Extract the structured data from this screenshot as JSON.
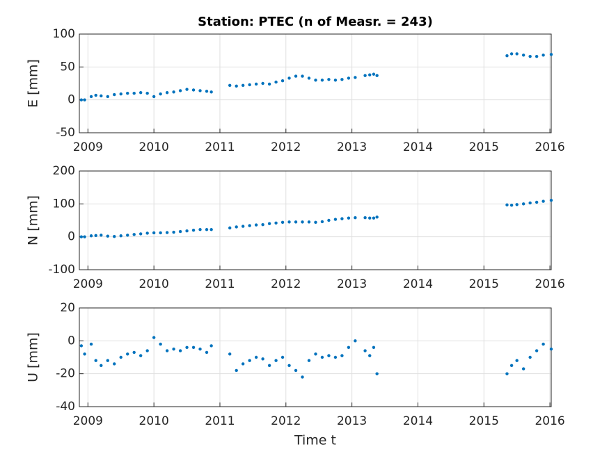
{
  "chart_data": [
    {
      "type": "scatter",
      "title": "Station: PTEC (n of Measr. = 243)",
      "ylabel": "E [mm]",
      "color": "#0072bd",
      "grid": true,
      "xlim": [
        2008.87,
        2016.02
      ],
      "xticks": [
        2009,
        2010,
        2011,
        2012,
        2013,
        2014,
        2015,
        2016
      ],
      "ylim": [
        -50,
        100
      ],
      "yticks": [
        -50,
        0,
        50,
        100
      ],
      "x": [
        2008.9,
        2008.95,
        2009.05,
        2009.12,
        2009.2,
        2009.3,
        2009.4,
        2009.5,
        2009.6,
        2009.7,
        2009.8,
        2009.9,
        2010.0,
        2010.1,
        2010.2,
        2010.3,
        2010.4,
        2010.5,
        2010.6,
        2010.7,
        2010.8,
        2010.87,
        2011.15,
        2011.25,
        2011.35,
        2011.45,
        2011.55,
        2011.65,
        2011.75,
        2011.85,
        2011.95,
        2012.05,
        2012.15,
        2012.25,
        2012.35,
        2012.45,
        2012.55,
        2012.65,
        2012.75,
        2012.85,
        2012.95,
        2013.05,
        2013.2,
        2013.27,
        2013.33,
        2013.38,
        2015.35,
        2015.42,
        2015.5,
        2015.6,
        2015.7,
        2015.8,
        2015.9,
        2016.02
      ],
      "values": [
        0,
        0,
        5,
        7,
        6,
        5,
        8,
        9,
        10,
        10,
        11,
        10,
        5,
        9,
        11,
        12,
        14,
        16,
        15,
        14,
        13,
        12,
        22,
        21,
        22,
        23,
        24,
        25,
        24,
        27,
        29,
        33,
        36,
        36,
        33,
        30,
        30,
        31,
        30,
        31,
        33,
        34,
        37,
        38,
        39,
        37,
        67,
        70,
        70,
        68,
        66,
        66,
        68,
        69
      ]
    },
    {
      "type": "scatter",
      "ylabel": "N [mm]",
      "color": "#0072bd",
      "grid": true,
      "xlim": [
        2008.87,
        2016.02
      ],
      "xticks": [
        2009,
        2010,
        2011,
        2012,
        2013,
        2014,
        2015,
        2016
      ],
      "ylim": [
        -100,
        200
      ],
      "yticks": [
        -100,
        0,
        100,
        200
      ],
      "x": [
        2008.9,
        2008.95,
        2009.05,
        2009.12,
        2009.2,
        2009.3,
        2009.4,
        2009.5,
        2009.6,
        2009.7,
        2009.8,
        2009.9,
        2010.0,
        2010.1,
        2010.2,
        2010.3,
        2010.4,
        2010.5,
        2010.6,
        2010.7,
        2010.8,
        2010.87,
        2011.15,
        2011.25,
        2011.35,
        2011.45,
        2011.55,
        2011.65,
        2011.75,
        2011.85,
        2011.95,
        2012.05,
        2012.15,
        2012.25,
        2012.35,
        2012.45,
        2012.55,
        2012.65,
        2012.75,
        2012.85,
        2012.95,
        2013.05,
        2013.2,
        2013.27,
        2013.33,
        2013.38,
        2015.35,
        2015.42,
        2015.5,
        2015.6,
        2015.7,
        2015.8,
        2015.9,
        2016.02
      ],
      "values": [
        0,
        0,
        3,
        4,
        5,
        2,
        1,
        3,
        5,
        7,
        9,
        11,
        12,
        12,
        13,
        14,
        16,
        18,
        20,
        22,
        22,
        22,
        27,
        30,
        32,
        34,
        36,
        37,
        40,
        42,
        44,
        45,
        45,
        45,
        45,
        44,
        46,
        50,
        53,
        55,
        57,
        58,
        58,
        57,
        57,
        60,
        97,
        96,
        98,
        100,
        103,
        105,
        108,
        111
      ]
    },
    {
      "type": "scatter",
      "ylabel": "U [mm]",
      "xlabel": "Time t",
      "color": "#0072bd",
      "grid": true,
      "xlim": [
        2008.87,
        2016.02
      ],
      "xticks": [
        2009,
        2010,
        2011,
        2012,
        2013,
        2014,
        2015,
        2016
      ],
      "ylim": [
        -40,
        20
      ],
      "yticks": [
        -40,
        -20,
        0,
        20
      ],
      "x": [
        2008.9,
        2008.95,
        2009.05,
        2009.12,
        2009.2,
        2009.3,
        2009.4,
        2009.5,
        2009.6,
        2009.7,
        2009.8,
        2009.9,
        2010.0,
        2010.1,
        2010.2,
        2010.3,
        2010.4,
        2010.5,
        2010.6,
        2010.7,
        2010.8,
        2010.87,
        2011.15,
        2011.25,
        2011.35,
        2011.45,
        2011.55,
        2011.65,
        2011.75,
        2011.85,
        2011.95,
        2012.05,
        2012.15,
        2012.25,
        2012.35,
        2012.45,
        2012.55,
        2012.65,
        2012.75,
        2012.85,
        2012.95,
        2013.05,
        2013.2,
        2013.27,
        2013.33,
        2013.38,
        2015.35,
        2015.42,
        2015.5,
        2015.6,
        2015.7,
        2015.8,
        2015.9,
        2016.02
      ],
      "values": [
        -3,
        -8,
        -2,
        -12,
        -15,
        -12,
        -14,
        -10,
        -8,
        -7,
        -9,
        -6,
        2,
        -2,
        -6,
        -5,
        -6,
        -4,
        -4,
        -5,
        -7,
        -3,
        -8,
        -18,
        -14,
        -12,
        -10,
        -11,
        -15,
        -12,
        -10,
        -15,
        -18,
        -22,
        -12,
        -8,
        -10,
        -9,
        -10,
        -9,
        -4,
        0,
        -6,
        -9,
        -4,
        -20,
        -20,
        -15,
        -12,
        -17,
        -10,
        -6,
        -2,
        -5
      ]
    }
  ]
}
